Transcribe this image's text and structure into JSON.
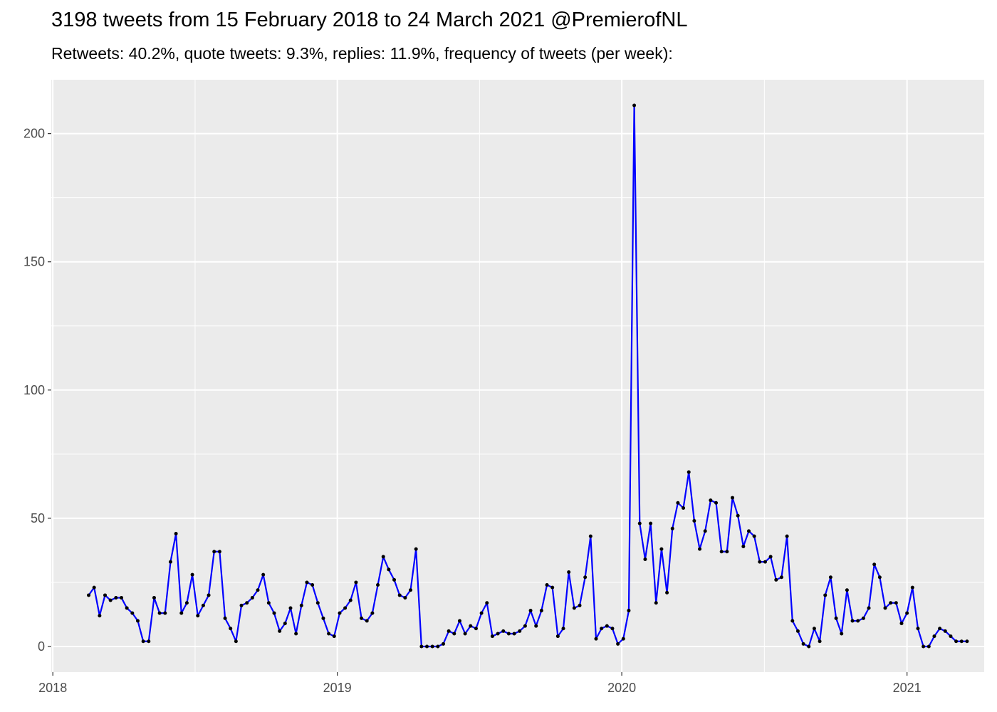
{
  "chart_data": {
    "type": "line",
    "title": "3198 tweets from 15 February 2018 to 24 March 2021 @PremierofNL",
    "subtitle": "Retweets: 40.2%, quote tweets: 9.3%, replies: 11.9%, frequency of tweets (per week):",
    "xlabel": "",
    "ylabel": "",
    "x_range": [
      "2017-12-30",
      "2021-04-10"
    ],
    "ylim": [
      -10,
      221
    ],
    "x_ticks": [
      "2018-01-01",
      "2019-01-01",
      "2020-01-01",
      "2021-01-01"
    ],
    "x_tick_labels": [
      "2018",
      "2019",
      "2020",
      "2021"
    ],
    "y_ticks": [
      0,
      50,
      100,
      150,
      200
    ],
    "y_tick_labels": [
      "0",
      "50",
      "100",
      "150",
      "200"
    ],
    "grid": true,
    "legend": "none",
    "line_color": "#0000ff",
    "point_color": "#000000",
    "panel_background": "#ebebeb",
    "series": [
      {
        "x": [
          "2018-02-16",
          "2018-02-23",
          "2018-03-02",
          "2018-03-09",
          "2018-03-16",
          "2018-03-23",
          "2018-03-30",
          "2018-04-06",
          "2018-04-13",
          "2018-04-20",
          "2018-04-27",
          "2018-05-04",
          "2018-05-11",
          "2018-05-18",
          "2018-05-25",
          "2018-06-01",
          "2018-06-08",
          "2018-06-15",
          "2018-06-22",
          "2018-06-29",
          "2018-07-06",
          "2018-07-13",
          "2018-07-20",
          "2018-07-27",
          "2018-08-03",
          "2018-08-10",
          "2018-08-17",
          "2018-08-24",
          "2018-08-31",
          "2018-09-07",
          "2018-09-14",
          "2018-09-21",
          "2018-09-28",
          "2018-10-05",
          "2018-10-12",
          "2018-10-19",
          "2018-10-26",
          "2018-11-02",
          "2018-11-09",
          "2018-11-16",
          "2018-11-23",
          "2018-11-30",
          "2018-12-07",
          "2018-12-14",
          "2018-12-21",
          "2018-12-28",
          "2019-01-04",
          "2019-01-11",
          "2019-01-18",
          "2019-01-25",
          "2019-02-01",
          "2019-02-08",
          "2019-02-15",
          "2019-02-22",
          "2019-03-01",
          "2019-03-08",
          "2019-03-15",
          "2019-03-22",
          "2019-03-29",
          "2019-04-05",
          "2019-04-12",
          "2019-04-19",
          "2019-04-26",
          "2019-05-03",
          "2019-05-10",
          "2019-05-17",
          "2019-05-24",
          "2019-05-31",
          "2019-06-07",
          "2019-06-14",
          "2019-06-21",
          "2019-06-28",
          "2019-07-05",
          "2019-07-12",
          "2019-07-19",
          "2019-07-26",
          "2019-08-02",
          "2019-08-09",
          "2019-08-16",
          "2019-08-23",
          "2019-08-30",
          "2019-09-06",
          "2019-09-13",
          "2019-09-20",
          "2019-09-27",
          "2019-10-04",
          "2019-10-11",
          "2019-10-18",
          "2019-10-25",
          "2019-11-01",
          "2019-11-08",
          "2019-11-15",
          "2019-11-22",
          "2019-11-29",
          "2019-12-06",
          "2019-12-13",
          "2019-12-20",
          "2019-12-27",
          "2020-01-03",
          "2020-01-10",
          "2020-01-17",
          "2020-01-24",
          "2020-01-31",
          "2020-02-07",
          "2020-02-14",
          "2020-02-21",
          "2020-02-28",
          "2020-03-06",
          "2020-03-13",
          "2020-03-20",
          "2020-03-27",
          "2020-04-03",
          "2020-04-10",
          "2020-04-17",
          "2020-04-24",
          "2020-05-01",
          "2020-05-08",
          "2020-05-15",
          "2020-05-22",
          "2020-05-29",
          "2020-06-05",
          "2020-06-12",
          "2020-06-19",
          "2020-06-26",
          "2020-07-03",
          "2020-07-10",
          "2020-07-17",
          "2020-07-24",
          "2020-07-31",
          "2020-08-07",
          "2020-08-14",
          "2020-08-21",
          "2020-08-28",
          "2020-09-04",
          "2020-09-11",
          "2020-09-18",
          "2020-09-25",
          "2020-10-02",
          "2020-10-09",
          "2020-10-16",
          "2020-10-23",
          "2020-10-30",
          "2020-11-06",
          "2020-11-13",
          "2020-11-20",
          "2020-11-27",
          "2020-12-04",
          "2020-12-11",
          "2020-12-18",
          "2020-12-25",
          "2021-01-01",
          "2021-01-08",
          "2021-01-15",
          "2021-01-22",
          "2021-01-29",
          "2021-02-05",
          "2021-02-12",
          "2021-02-19",
          "2021-02-26",
          "2021-03-05",
          "2021-03-12",
          "2021-03-19"
        ],
        "y": [
          20,
          23,
          12,
          20,
          18,
          19,
          19,
          15,
          13,
          10,
          2,
          2,
          19,
          13,
          13,
          33,
          44,
          13,
          17,
          28,
          12,
          16,
          20,
          37,
          37,
          11,
          7,
          2,
          16,
          17,
          19,
          22,
          28,
          17,
          13,
          6,
          9,
          15,
          5,
          16,
          25,
          24,
          17,
          11,
          5,
          4,
          13,
          15,
          18,
          25,
          11,
          10,
          13,
          24,
          35,
          30,
          26,
          20,
          19,
          22,
          38,
          0,
          0,
          0,
          0,
          1,
          6,
          5,
          10,
          5,
          8,
          7,
          13,
          17,
          4,
          5,
          6,
          5,
          5,
          6,
          8,
          14,
          8,
          14,
          24,
          23,
          4,
          7,
          29,
          15,
          16,
          27,
          43,
          3,
          7,
          8,
          7,
          1,
          3,
          14,
          211,
          48,
          34,
          48,
          17,
          38,
          21,
          46,
          56,
          54,
          68,
          49,
          38,
          45,
          57,
          56,
          37,
          37,
          58,
          51,
          39,
          45,
          43,
          33,
          33,
          35,
          26,
          27,
          43,
          10,
          6,
          1,
          0,
          7,
          2,
          20,
          27,
          11,
          5,
          22,
          10,
          10,
          11,
          15,
          32,
          27,
          15,
          17,
          17,
          9,
          13,
          23,
          7,
          0,
          0,
          4,
          7,
          6,
          4,
          2,
          2,
          2
        ]
      }
    ]
  }
}
